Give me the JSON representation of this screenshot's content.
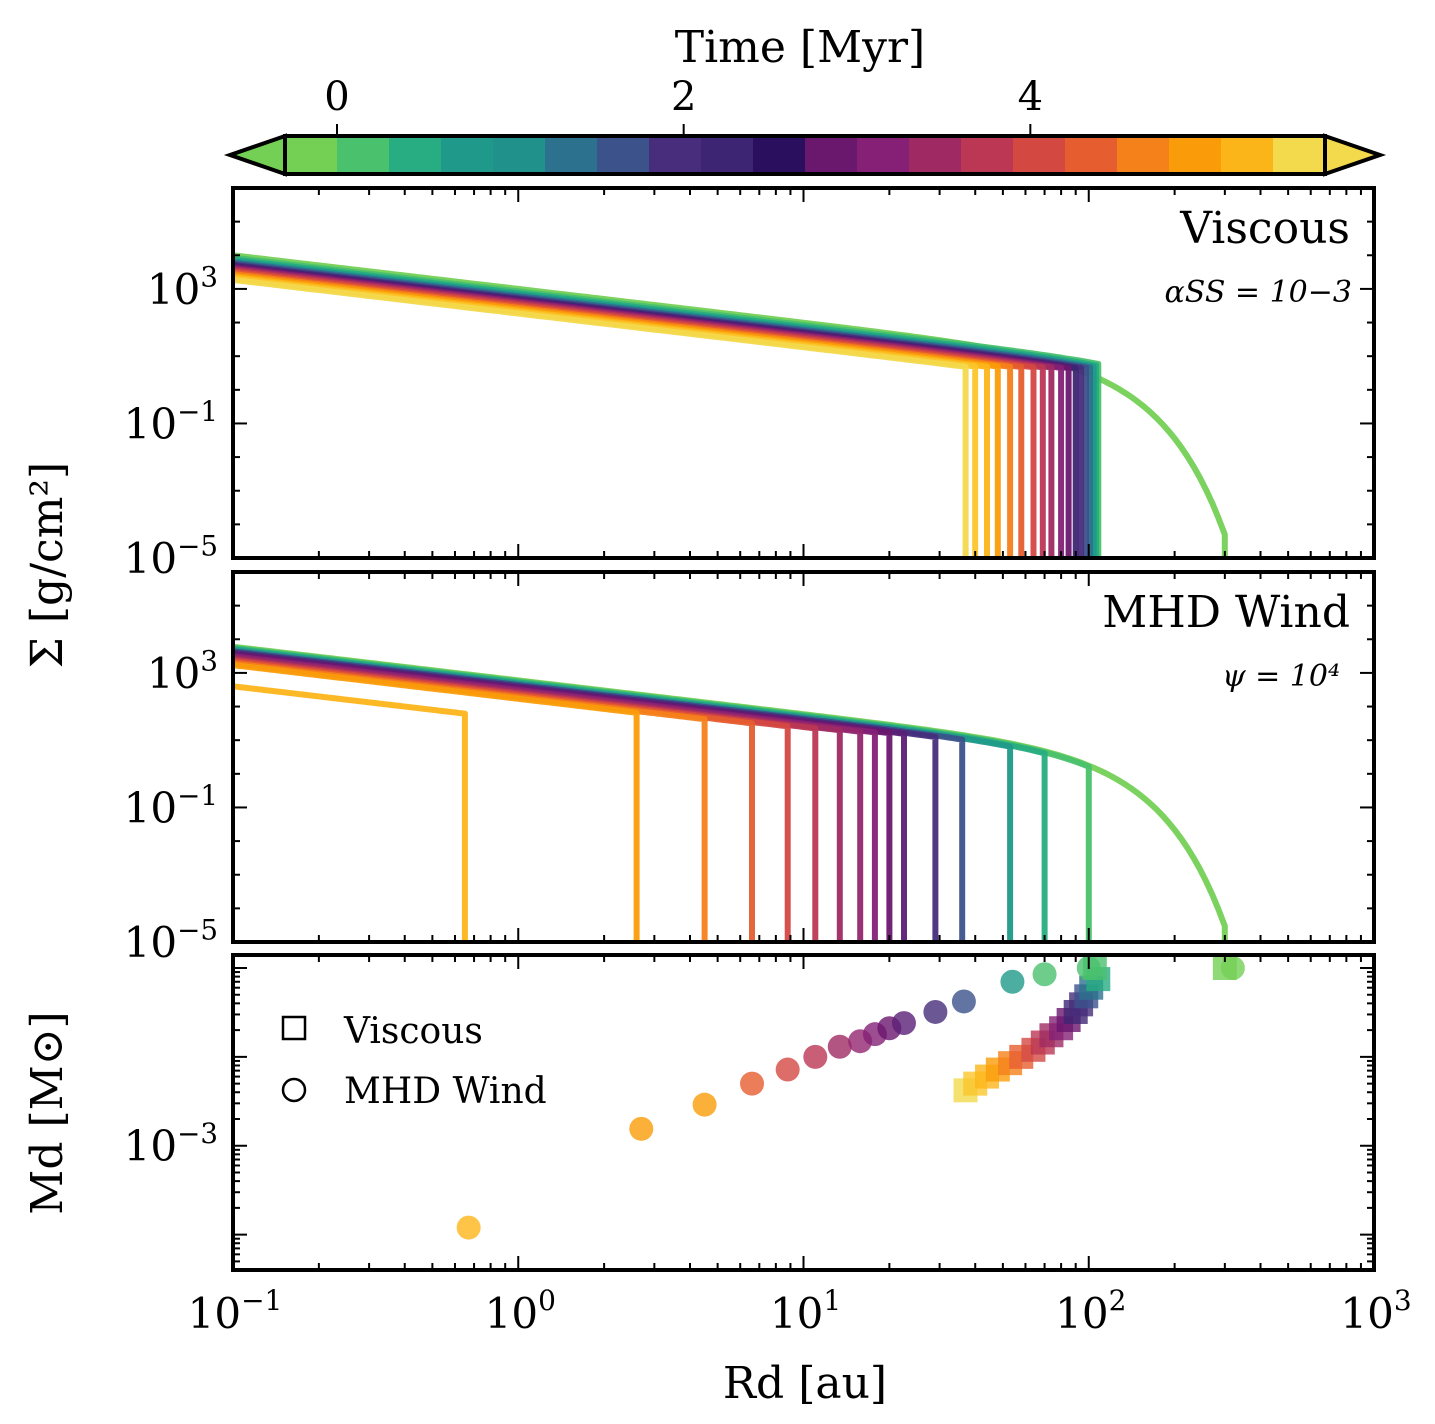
{
  "colorbar": {
    "title": "Time [Myr]",
    "ticks": [
      {
        "value": 0,
        "label": "0"
      },
      {
        "value": 2,
        "label": "2"
      },
      {
        "value": 4,
        "label": "4"
      }
    ],
    "range": [
      -0.3,
      5.7
    ],
    "colors": [
      "#74d055",
      "#4ac16d",
      "#27ad81",
      "#1f9a8a",
      "#21918c",
      "#2c728e",
      "#3b528b",
      "#472d7b",
      "#3e2574",
      "#2a0f5f",
      "#6a176e",
      "#852076",
      "#9f2a63",
      "#bc3754",
      "#d44842",
      "#e65d2f",
      "#f5811a",
      "#fa9c09",
      "#fcb519",
      "#f3d94c"
    ],
    "extend": "both"
  },
  "chart_data": [
    {
      "type": "line",
      "panel": "viscous",
      "title": "Viscous",
      "annotation": "αSS = 10−3",
      "xscale": "log",
      "yscale": "log",
      "xlim": [
        0.1,
        1000
      ],
      "ylim": [
        1e-05,
        1000000.0
      ],
      "yticks": [
        "10^3",
        "10^-1",
        "10^-5"
      ],
      "ylabel": "Σ [g/cm²]",
      "series_model": "Sigma(R) = S0*(R/0.1)^-1 * exp(-(R/Rc)^2); curve truncated vertically at R_trunc",
      "series": [
        {
          "time_myr": 0.0,
          "color": "#74d055",
          "S0": 10000,
          "Rc": 90,
          "R_trunc": 300
        },
        {
          "time_myr": 0.3,
          "color": "#4ac16d",
          "S0": 8500,
          "Rc": 200,
          "R_trunc": 108
        },
        {
          "time_myr": 0.6,
          "color": "#27ad81",
          "S0": 7500,
          "Rc": 200,
          "R_trunc": 106
        },
        {
          "time_myr": 0.9,
          "color": "#1f9a8a",
          "S0": 6700,
          "Rc": 200,
          "R_trunc": 104
        },
        {
          "time_myr": 1.2,
          "color": "#2c728e",
          "S0": 6100,
          "Rc": 200,
          "R_trunc": 101
        },
        {
          "time_myr": 1.5,
          "color": "#3b528b",
          "S0": 5600,
          "Rc": 200,
          "R_trunc": 98
        },
        {
          "time_myr": 1.8,
          "color": "#472d7b",
          "S0": 5200,
          "Rc": 200,
          "R_trunc": 94
        },
        {
          "time_myr": 2.1,
          "color": "#3e2574",
          "S0": 4800,
          "Rc": 200,
          "R_trunc": 90
        },
        {
          "time_myr": 2.4,
          "color": "#6a176e",
          "S0": 4500,
          "Rc": 200,
          "R_trunc": 85
        },
        {
          "time_myr": 2.7,
          "color": "#852076",
          "S0": 4200,
          "Rc": 200,
          "R_trunc": 80
        },
        {
          "time_myr": 3.0,
          "color": "#9f2a63",
          "S0": 3900,
          "Rc": 200,
          "R_trunc": 74
        },
        {
          "time_myr": 3.3,
          "color": "#bc3754",
          "S0": 3600,
          "Rc": 200,
          "R_trunc": 69
        },
        {
          "time_myr": 3.6,
          "color": "#d44842",
          "S0": 3300,
          "Rc": 200,
          "R_trunc": 64
        },
        {
          "time_myr": 3.9,
          "color": "#e65d2f",
          "S0": 3000,
          "Rc": 200,
          "R_trunc": 58
        },
        {
          "time_myr": 4.2,
          "color": "#f5811a",
          "S0": 2750,
          "Rc": 200,
          "R_trunc": 53
        },
        {
          "time_myr": 4.5,
          "color": "#fa9c09",
          "S0": 2500,
          "Rc": 200,
          "R_trunc": 48
        },
        {
          "time_myr": 4.8,
          "color": "#fcb519",
          "S0": 2250,
          "Rc": 200,
          "R_trunc": 44
        },
        {
          "time_myr": 5.1,
          "color": "#fbc62b",
          "S0": 2050,
          "Rc": 200,
          "R_trunc": 40
        },
        {
          "time_myr": 5.4,
          "color": "#f3d94c",
          "S0": 1850,
          "Rc": 200,
          "R_trunc": 37
        }
      ]
    },
    {
      "type": "line",
      "panel": "mhd",
      "title": "MHD Wind",
      "annotation": "ψ = 10⁴",
      "xscale": "log",
      "yscale": "log",
      "xlim": [
        0.1,
        1000
      ],
      "ylim": [
        1e-05,
        1000000.0
      ],
      "yticks": [
        "10^3",
        "10^-1",
        "10^-5"
      ],
      "series_model": "Sigma(R) = S0*(R/0.1)^-1 * exp(-(R/Rc)^2); curve truncated vertically at R_trunc",
      "series": [
        {
          "time_myr": 0.0,
          "color": "#74d055",
          "S0": 6000,
          "Rc": 90,
          "R_trunc": 300
        },
        {
          "time_myr": 0.3,
          "color": "#4ac16d",
          "S0": 5600,
          "Rc": 90,
          "R_trunc": 100
        },
        {
          "time_myr": 0.6,
          "color": "#27ad81",
          "S0": 5200,
          "Rc": 90,
          "R_trunc": 70
        },
        {
          "time_myr": 0.9,
          "color": "#1f9a8a",
          "S0": 4800,
          "Rc": 90,
          "R_trunc": 53
        },
        {
          "time_myr": 1.2,
          "color": "#3b528b",
          "S0": 4400,
          "Rc": 90,
          "R_trunc": 36
        },
        {
          "time_myr": 1.5,
          "color": "#472d7b",
          "S0": 4000,
          "Rc": 90,
          "R_trunc": 29
        },
        {
          "time_myr": 1.8,
          "color": "#5b1f77",
          "S0": 3700,
          "Rc": 90,
          "R_trunc": 22.5
        },
        {
          "time_myr": 2.1,
          "color": "#6a176e",
          "S0": 3400,
          "Rc": 90,
          "R_trunc": 20
        },
        {
          "time_myr": 2.4,
          "color": "#852076",
          "S0": 3150,
          "Rc": 90,
          "R_trunc": 17.8
        },
        {
          "time_myr": 2.7,
          "color": "#93266f",
          "S0": 2900,
          "Rc": 90,
          "R_trunc": 15.8
        },
        {
          "time_myr": 3.0,
          "color": "#9f2a63",
          "S0": 2700,
          "Rc": 90,
          "R_trunc": 13.4
        },
        {
          "time_myr": 3.3,
          "color": "#bc3754",
          "S0": 2500,
          "Rc": 90,
          "R_trunc": 11
        },
        {
          "time_myr": 3.6,
          "color": "#d44842",
          "S0": 2300,
          "Rc": 90,
          "R_trunc": 8.8
        },
        {
          "time_myr": 3.9,
          "color": "#e65d2f",
          "S0": 2100,
          "Rc": 90,
          "R_trunc": 6.6
        },
        {
          "time_myr": 4.2,
          "color": "#f5811a",
          "S0": 1900,
          "Rc": 90,
          "R_trunc": 4.5
        },
        {
          "time_myr": 4.5,
          "color": "#fa9c09",
          "S0": 1700,
          "Rc": 90,
          "R_trunc": 2.6
        },
        {
          "time_myr": 4.8,
          "color": "#fcb519",
          "S0": 400,
          "Rc": 90,
          "R_trunc": 0.65
        }
      ]
    },
    {
      "type": "scatter",
      "panel": "mass",
      "xscale": "log",
      "yscale": "log",
      "xlim": [
        0.1,
        1000
      ],
      "ylim": [
        4e-05,
        0.14
      ],
      "yticks": [
        "10^-3"
      ],
      "xticks": [
        "10^-1",
        "10^0",
        "10^1",
        "10^2",
        "10^3"
      ],
      "xlabel": "Rd [au]",
      "ylabel": "Md [M⊙]",
      "legend": {
        "location": "upper-left",
        "entries": [
          {
            "marker": "square",
            "label": "Viscous"
          },
          {
            "marker": "circle",
            "label": "MHD Wind"
          }
        ]
      },
      "viscous_points": [
        {
          "x": 300,
          "y": 0.1,
          "color": "#74d055"
        },
        {
          "x": 105,
          "y": 0.1,
          "color": "#4ac16d"
        },
        {
          "x": 108,
          "y": 0.075,
          "color": "#27ad81"
        },
        {
          "x": 102,
          "y": 0.06,
          "color": "#2c728e"
        },
        {
          "x": 98,
          "y": 0.048,
          "color": "#3b528b"
        },
        {
          "x": 94,
          "y": 0.039,
          "color": "#472d7b"
        },
        {
          "x": 90,
          "y": 0.032,
          "color": "#3e2574"
        },
        {
          "x": 85,
          "y": 0.026,
          "color": "#6a176e"
        },
        {
          "x": 80,
          "y": 0.021,
          "color": "#852076"
        },
        {
          "x": 74,
          "y": 0.0175,
          "color": "#9f2a63"
        },
        {
          "x": 69,
          "y": 0.0145,
          "color": "#bc3754"
        },
        {
          "x": 64,
          "y": 0.012,
          "color": "#d44842"
        },
        {
          "x": 58,
          "y": 0.01,
          "color": "#e65d2f"
        },
        {
          "x": 53,
          "y": 0.0085,
          "color": "#f5811a"
        },
        {
          "x": 48,
          "y": 0.0072,
          "color": "#fa9c09"
        },
        {
          "x": 44,
          "y": 0.006,
          "color": "#fcb519"
        },
        {
          "x": 40,
          "y": 0.005,
          "color": "#fbc62b"
        },
        {
          "x": 37,
          "y": 0.0042,
          "color": "#f3d94c"
        }
      ],
      "mhd_points": [
        {
          "x": 320,
          "y": 0.1,
          "color": "#74d055"
        },
        {
          "x": 100,
          "y": 0.1,
          "color": "#4ac16d"
        },
        {
          "x": 70,
          "y": 0.085,
          "color": "#4ac16d"
        },
        {
          "x": 54,
          "y": 0.07,
          "color": "#1f9a8a"
        },
        {
          "x": 36.5,
          "y": 0.042,
          "color": "#3b528b"
        },
        {
          "x": 29,
          "y": 0.032,
          "color": "#472d7b"
        },
        {
          "x": 22.5,
          "y": 0.024,
          "color": "#5b1f77"
        },
        {
          "x": 20,
          "y": 0.021,
          "color": "#6a176e"
        },
        {
          "x": 17.8,
          "y": 0.018,
          "color": "#852076"
        },
        {
          "x": 15.8,
          "y": 0.015,
          "color": "#93266f"
        },
        {
          "x": 13.4,
          "y": 0.013,
          "color": "#9f2a63"
        },
        {
          "x": 11,
          "y": 0.01,
          "color": "#bc3754"
        },
        {
          "x": 8.8,
          "y": 0.0072,
          "color": "#d44842"
        },
        {
          "x": 6.6,
          "y": 0.005,
          "color": "#e65d2f"
        },
        {
          "x": 4.5,
          "y": 0.0029,
          "color": "#fa9c09"
        },
        {
          "x": 2.7,
          "y": 0.00155,
          "color": "#fa9c09"
        },
        {
          "x": 0.67,
          "y": 0.00012,
          "color": "#fcb519"
        }
      ]
    }
  ]
}
